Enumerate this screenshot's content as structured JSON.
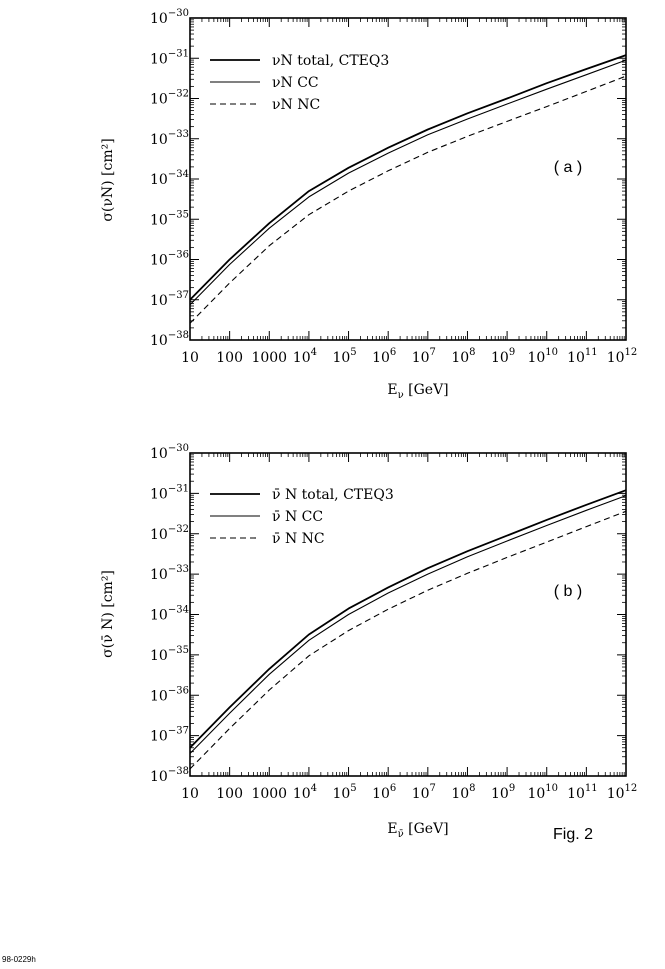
{
  "figure_label": "Fig. 2",
  "footer_code": "98-0229h",
  "chart_data": [
    {
      "type": "line",
      "panel_label": "( a )",
      "xlabel": "E",
      "xlabel_sub": "ν",
      "xlabel_unit": "[GeV]",
      "ylabel": "σ(νN) [cm²]",
      "xscale": "log",
      "yscale": "log",
      "xlim": [
        10,
        1000000000000.0
      ],
      "ylim": [
        1e-38,
        1e-30
      ],
      "x_ticklabels": [
        "10",
        "100",
        "1000",
        "10",
        "10",
        "10",
        "10",
        "10",
        "10",
        "10",
        "10",
        "10"
      ],
      "x_tick_exponents": [
        "",
        "",
        "",
        "4",
        "5",
        "6",
        "7",
        "8",
        "9",
        "10",
        "11",
        "12"
      ],
      "y_ticklabels": [
        "10",
        "10",
        "10",
        "10",
        "10",
        "10",
        "10",
        "10",
        "10"
      ],
      "y_tick_exponents": [
        "−30",
        "−31",
        "−32",
        "−33",
        "−34",
        "−35",
        "−36",
        "−37",
        "−38"
      ],
      "legend_position": "top-left",
      "x": [
        10,
        100,
        1000,
        10000,
        100000,
        1000000,
        10000000,
        100000000,
        1000000000,
        10000000000,
        100000000000,
        1000000000000
      ],
      "series": [
        {
          "name": "νN total, CTEQ3",
          "style": "solid",
          "values": [
            1e-37,
            1e-36,
            8e-36,
            5e-35,
            1.9e-34,
            6e-34,
            1.7e-33,
            4.3e-33,
            1e-32,
            2.4e-32,
            5.4e-32,
            1.2e-31
          ]
        },
        {
          "name": "νN CC",
          "style": "solid",
          "values": [
            7.5e-38,
            7.5e-37,
            6e-36,
            3.6e-35,
            1.4e-34,
            4.4e-34,
            1.25e-33,
            3.1e-33,
            7.3e-33,
            1.7e-32,
            3.9e-32,
            9e-32
          ]
        },
        {
          "name": "νN NC",
          "style": "dashed",
          "values": [
            2.6e-38,
            2.6e-37,
            2.2e-36,
            1.3e-35,
            5e-35,
            1.6e-34,
            4.6e-34,
            1.15e-33,
            2.7e-33,
            6.3e-33,
            1.5e-32,
            3.6e-32
          ]
        }
      ]
    },
    {
      "type": "line",
      "panel_label": "( b )",
      "xlabel": "E",
      "xlabel_sub": "ν̄",
      "xlabel_unit": "[GeV]",
      "ylabel": "σ(ν̄ N) [cm²]",
      "xscale": "log",
      "yscale": "log",
      "xlim": [
        10,
        1000000000000.0
      ],
      "ylim": [
        1e-38,
        1e-30
      ],
      "x_ticklabels": [
        "10",
        "100",
        "1000",
        "10",
        "10",
        "10",
        "10",
        "10",
        "10",
        "10",
        "10",
        "10"
      ],
      "x_tick_exponents": [
        "",
        "",
        "",
        "4",
        "5",
        "6",
        "7",
        "8",
        "9",
        "10",
        "11",
        "12"
      ],
      "y_ticklabels": [
        "10",
        "10",
        "10",
        "10",
        "10",
        "10",
        "10",
        "10",
        "10"
      ],
      "y_tick_exponents": [
        "−30",
        "−31",
        "−32",
        "−33",
        "−34",
        "−35",
        "−36",
        "−37",
        "−38"
      ],
      "legend_position": "top-left",
      "x": [
        10,
        100,
        1000,
        10000,
        100000,
        1000000,
        10000000,
        100000000,
        1000000000,
        10000000000,
        100000000000,
        1000000000000
      ],
      "series": [
        {
          "name": "ν̄ N total, CTEQ3",
          "style": "solid",
          "values": [
            5e-38,
            5e-37,
            4.5e-36,
            3.2e-35,
            1.4e-34,
            4.7e-34,
            1.4e-33,
            3.7e-33,
            9e-33,
            2.2e-32,
            5.2e-32,
            1.2e-31
          ]
        },
        {
          "name": "ν̄ N CC",
          "style": "solid",
          "values": [
            3.6e-38,
            3.6e-37,
            3.3e-36,
            2.3e-35,
            1e-34,
            3.4e-34,
            1e-33,
            2.7e-33,
            6.6e-33,
            1.6e-32,
            3.8e-32,
            8.8e-32
          ]
        },
        {
          "name": "ν̄ N NC",
          "style": "dashed",
          "values": [
            1.5e-38,
            1.5e-37,
            1.35e-36,
            9.5e-36,
            4e-35,
            1.35e-34,
            4e-34,
            1.05e-33,
            2.6e-33,
            6.2e-33,
            1.5e-32,
            3.6e-32
          ]
        }
      ]
    }
  ]
}
